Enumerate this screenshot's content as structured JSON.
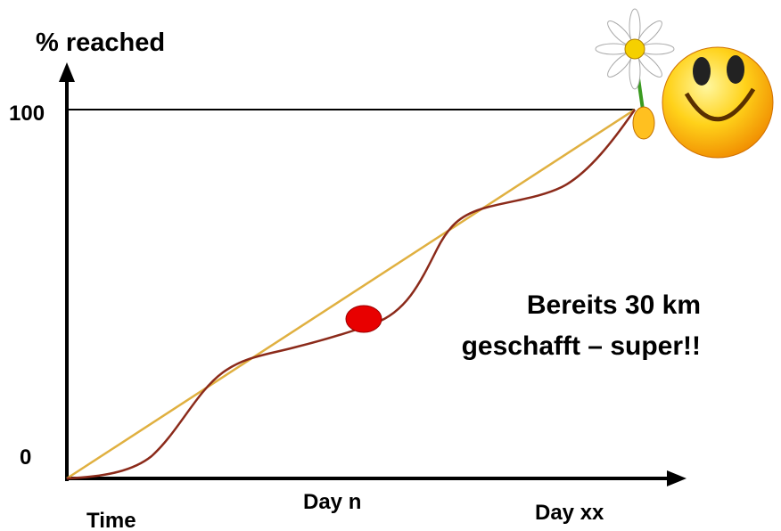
{
  "y_axis": {
    "label": "% reached",
    "ticks": [
      "100",
      "0"
    ]
  },
  "x_axis": {
    "label": "Time",
    "marks": [
      "Day n",
      "Day xx"
    ]
  },
  "annotation": {
    "lines": [
      "Bereits 30 km",
      "geschafft – super!!"
    ]
  }
}
